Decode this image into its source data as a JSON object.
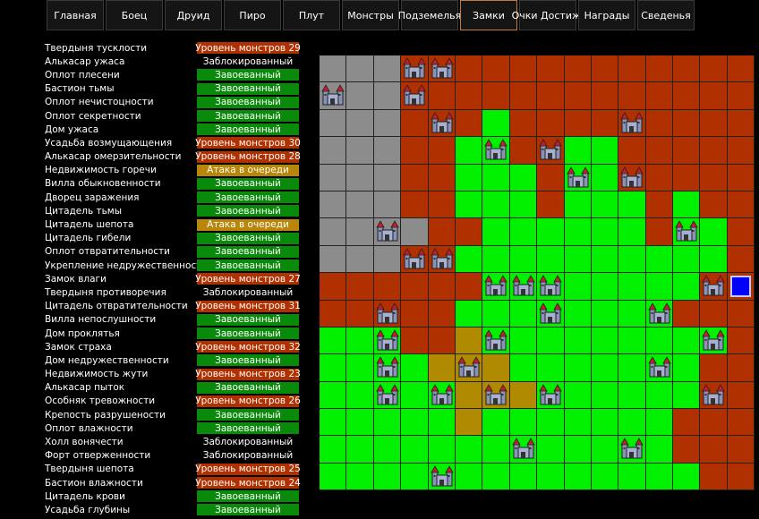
{
  "nav": [
    {
      "label": "Главная",
      "active": false
    },
    {
      "label": "Боец",
      "active": false
    },
    {
      "label": "Друид",
      "active": false
    },
    {
      "label": "Пиро",
      "active": false
    },
    {
      "label": "Плут",
      "active": false
    },
    {
      "label": "Монстры",
      "active": false
    },
    {
      "label": "Подземелья",
      "active": false
    },
    {
      "label": "Замки",
      "active": true
    },
    {
      "label": "Очки Достиж.",
      "active": false
    },
    {
      "label": "Награды",
      "active": false
    },
    {
      "label": "Сведенья",
      "active": false
    }
  ],
  "castles": [
    {
      "name": "Твердыня тусклости",
      "status": "Уровень монстров 29",
      "type": "monster"
    },
    {
      "name": "Алькасар ужаса",
      "status": "Заблокированный",
      "type": "locked"
    },
    {
      "name": "Оплот плесени",
      "status": "Завоеванный",
      "type": "conquered"
    },
    {
      "name": "Бастион тьмы",
      "status": "Завоеванный",
      "type": "conquered"
    },
    {
      "name": "Оплот нечистоцности",
      "status": "Завоеванный",
      "type": "conquered"
    },
    {
      "name": "Оплот секретности",
      "status": "Завоеванный",
      "type": "conquered"
    },
    {
      "name": "Дом ужаса",
      "status": "Завоеванный",
      "type": "conquered"
    },
    {
      "name": "Усадьба возмущающения",
      "status": "Уровень монстров 30",
      "type": "monster"
    },
    {
      "name": "Алькасар омерзительности",
      "status": "Уровень монстров 28",
      "type": "monster"
    },
    {
      "name": "Недвижимость горечи",
      "status": "Атака в очереди",
      "type": "attack"
    },
    {
      "name": "Вилла обыкновенности",
      "status": "Завоеванный",
      "type": "conquered"
    },
    {
      "name": "Дворец заражения",
      "status": "Завоеванный",
      "type": "conquered"
    },
    {
      "name": "Цитадель тьмы",
      "status": "Завоеванный",
      "type": "conquered"
    },
    {
      "name": "Цитадель шепота",
      "status": "Атака в очереди",
      "type": "attack"
    },
    {
      "name": "Цитадель гибели",
      "status": "Завоеванный",
      "type": "conquered"
    },
    {
      "name": "Оплот отвратительности",
      "status": "Завоеванный",
      "type": "conquered"
    },
    {
      "name": "Укрепление недружественности",
      "status": "Завоеванный",
      "type": "conquered"
    },
    {
      "name": "Замок влаги",
      "status": "Уровень монстров 27",
      "type": "monster"
    },
    {
      "name": "Твердыня противоречия",
      "status": "Заблокированный",
      "type": "locked"
    },
    {
      "name": "Цитадель отвратительности",
      "status": "Уровень монстров 31",
      "type": "monster"
    },
    {
      "name": "Вилла непослушности",
      "status": "Завоеванный",
      "type": "conquered"
    },
    {
      "name": "Дом проклятья",
      "status": "Завоеванный",
      "type": "conquered"
    },
    {
      "name": "Замок страха",
      "status": "Уровень монстров 32",
      "type": "monster"
    },
    {
      "name": "Дом недружественности",
      "status": "Завоеванный",
      "type": "conquered"
    },
    {
      "name": "Недвижимость жути",
      "status": "Уровень монстров 23",
      "type": "monster"
    },
    {
      "name": "Алькасар пыток",
      "status": "Завоеванный",
      "type": "conquered"
    },
    {
      "name": "Особняк тревожности",
      "status": "Уровень монстров 26",
      "type": "monster"
    },
    {
      "name": "Крепость разрушености",
      "status": "Завоеванный",
      "type": "conquered"
    },
    {
      "name": "Оплот влажности",
      "status": "Завоеванный",
      "type": "conquered"
    },
    {
      "name": "Холл вонячести",
      "status": "Заблокированный",
      "type": "locked"
    },
    {
      "name": "Форт отверженности",
      "status": "Заблокированный",
      "type": "locked"
    },
    {
      "name": "Твердыня шепота",
      "status": "Уровень монстров 25",
      "type": "monster"
    },
    {
      "name": "Бастион влажности",
      "status": "Уровень монстров 24",
      "type": "monster"
    },
    {
      "name": "Цитадель крови",
      "status": "Завоеванный",
      "type": "conquered"
    },
    {
      "name": "Усадьба глубины",
      "status": "Завоеванный",
      "type": "conquered"
    }
  ],
  "map": {
    "legend": {
      "G": "#8c8c8c",
      "R": "#b03000",
      "L": "#00f000",
      "Y": "#b08a00"
    },
    "rows": [
      "GGGRRRRRRRRRRRRR",
      "GGGRRRRRRRRRRRRR",
      "GGGRRRLRRRRRRRRR",
      "GGGRRLLRRLLRRRRR",
      "GGGRRLLLRLLRRRRR",
      "GGGRRLLLRLLLRLRR",
      "GGGGRRLLLLLLRLLR",
      "GGGRRLLLLLLLLLLR",
      "RRRRRRLLLLLLLLRR",
      "RRRRRLLLLLLLLRRR",
      "LLLRRYLLLLLLLLLR",
      "LLLLYYYLLLLLLLRR",
      "LLLLLYYYLLLLLLRR",
      "LLLLLYLLLLLLLRRR",
      "LLLLLLLLLLLLLRRR",
      "LLLLLLLLLLLLLLRR"
    ],
    "castles": [
      [
        0,
        3
      ],
      [
        0,
        4
      ],
      [
        1,
        0
      ],
      [
        1,
        3
      ],
      [
        2,
        4
      ],
      [
        2,
        11
      ],
      [
        3,
        6
      ],
      [
        3,
        8
      ],
      [
        4,
        9
      ],
      [
        4,
        11
      ],
      [
        6,
        2
      ],
      [
        6,
        13
      ],
      [
        7,
        3
      ],
      [
        7,
        4
      ],
      [
        8,
        6
      ],
      [
        8,
        7
      ],
      [
        8,
        8
      ],
      [
        8,
        14
      ],
      [
        9,
        2
      ],
      [
        9,
        8
      ],
      [
        9,
        12
      ],
      [
        10,
        2
      ],
      [
        10,
        6
      ],
      [
        10,
        14
      ],
      [
        11,
        2
      ],
      [
        11,
        5
      ],
      [
        11,
        12
      ],
      [
        12,
        2
      ],
      [
        12,
        4
      ],
      [
        12,
        6
      ],
      [
        12,
        8
      ],
      [
        12,
        14
      ],
      [
        14,
        7
      ],
      [
        14,
        11
      ],
      [
        15,
        4
      ]
    ],
    "player_marker": [
      8,
      15
    ]
  }
}
